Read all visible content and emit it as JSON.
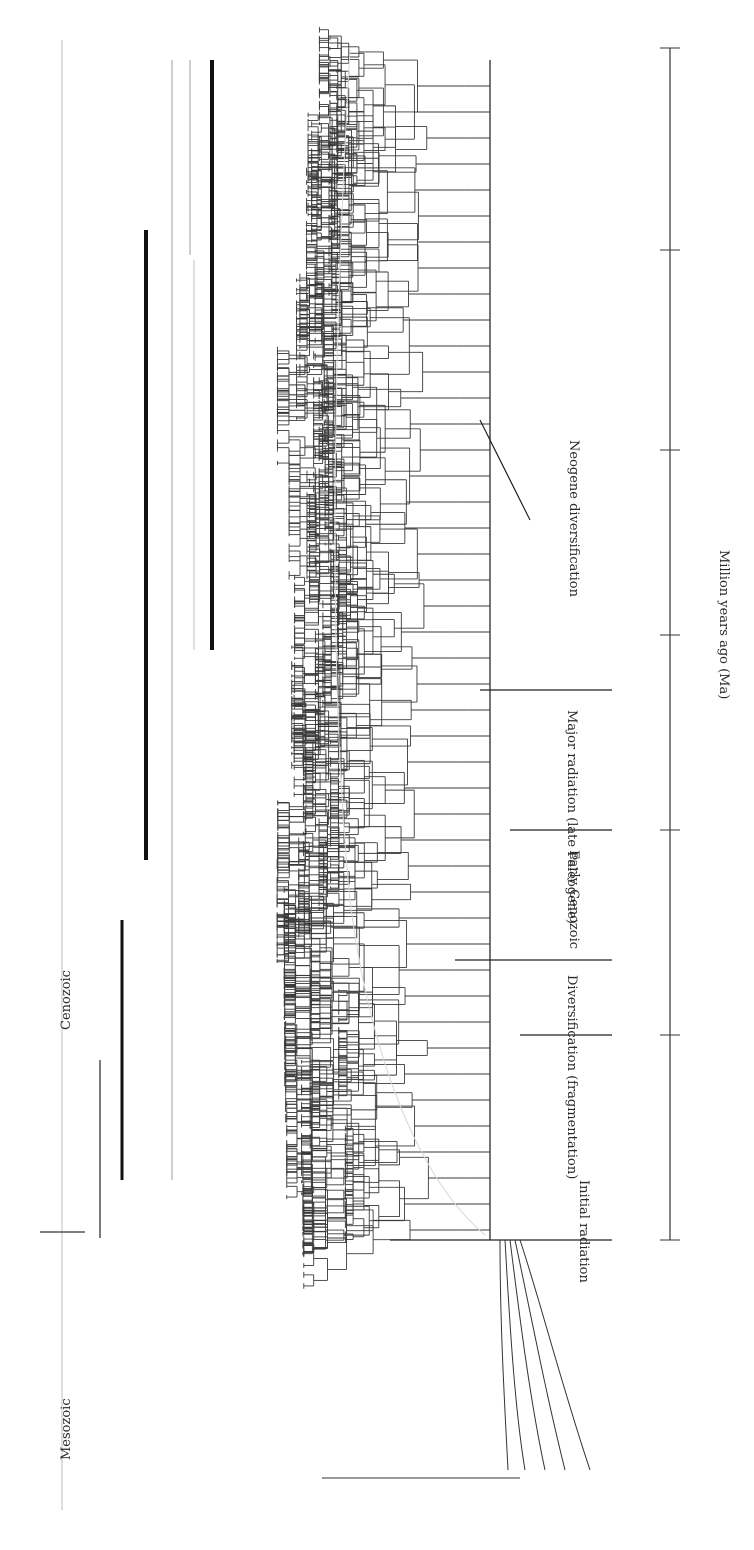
{
  "figure": {
    "timeline_ticks_top": [
      "",
      "",
      "",
      "",
      "",
      "",
      "",
      ""
    ],
    "era_labels": [
      "Mesozoic",
      "Cenozoic"
    ],
    "bar_end_labels": [
      "",
      "",
      "",
      "",
      "",
      "",
      ""
    ],
    "phase_labels": [
      "Initial radiation",
      "Diversification (fragmentation)",
      "Early Cenozoic",
      "Major radiation (late Paleogene)",
      "Neogene diversification"
    ],
    "scale_ticks_bottom": [
      "",
      "",
      "",
      "",
      "",
      ""
    ],
    "scale_title": "Million years ago (Ma)",
    "left_axis_ticks": [
      "",
      "",
      "",
      "",
      "",
      "",
      "",
      ""
    ],
    "left_axis_title": "",
    "basal_taxa": [
      "",
      "",
      "",
      "",
      ""
    ],
    "clade_labels": [
      "",
      "",
      "",
      "",
      "",
      "",
      "",
      "",
      "",
      "",
      "",
      "",
      "",
      "",
      "",
      "",
      "",
      "",
      "",
      "",
      "",
      "",
      "",
      "",
      ""
    ]
  },
  "colors": {
    "ink": "#2a2a2a",
    "bar": "#111111",
    "line": "#3a3a3a",
    "faint": "#bdbdbd"
  }
}
